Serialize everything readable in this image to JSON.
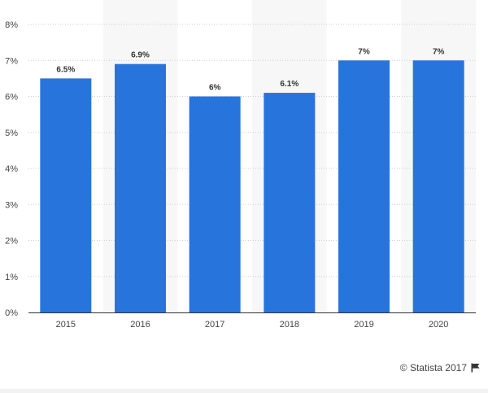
{
  "chart_data": {
    "type": "bar",
    "categories": [
      "2015",
      "2016",
      "2017",
      "2018",
      "2019",
      "2020"
    ],
    "values": [
      6.5,
      6.9,
      6,
      6.1,
      7,
      7
    ],
    "data_labels": [
      "6.5%",
      "6.9%",
      "6%",
      "6.1%",
      "7%",
      "7%"
    ],
    "yticks": [
      0,
      1,
      2,
      3,
      4,
      5,
      6,
      7,
      8
    ],
    "ytick_labels": [
      "0%",
      "1%",
      "2%",
      "3%",
      "4%",
      "5%",
      "6%",
      "7%",
      "8%"
    ],
    "ylim": [
      0,
      8
    ],
    "title": "",
    "xlabel": "",
    "ylabel": "",
    "grid": true,
    "bar_color": "#2775dc",
    "band_color": "#f7f7f7"
  },
  "footer": {
    "credit": "© Statista 2017",
    "icon": "flag-icon"
  }
}
